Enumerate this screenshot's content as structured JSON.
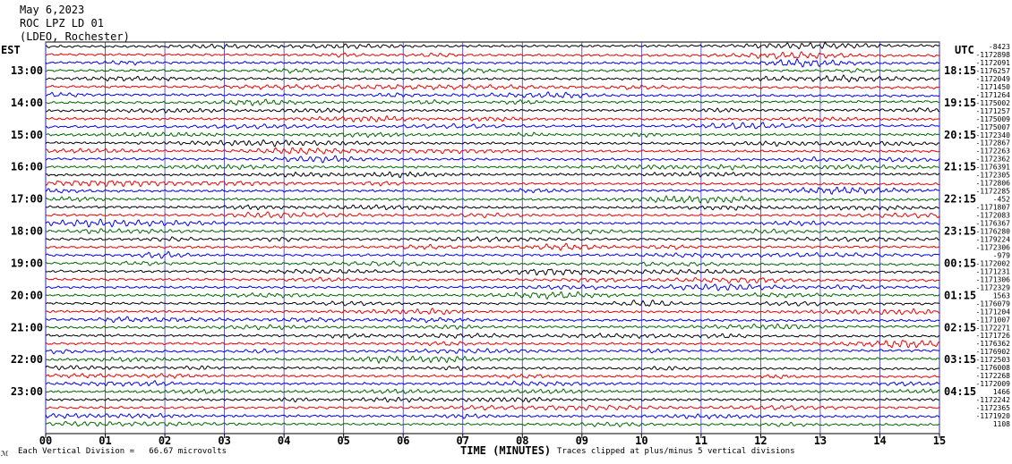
{
  "header": {
    "date": "May 6,2023",
    "station": "ROC LPZ LD 01",
    "network": "(LDEO, Rochester)"
  },
  "left_tz": "EST",
  "right_tz": "UTC",
  "footer": {
    "scale_note": "Each Vertical Division =   66.67 microvolts",
    "clip_note": "Traces clipped at plus/minus 5 vertical divisions",
    "corner_mark": "ℳ"
  },
  "chart_data": {
    "type": "line",
    "xlabel": "TIME (MINUTES)",
    "x_ticks": [
      "00",
      "01",
      "02",
      "03",
      "04",
      "05",
      "06",
      "07",
      "08",
      "09",
      "10",
      "11",
      "12",
      "13",
      "14",
      "15"
    ],
    "xlim": [
      0,
      15
    ],
    "grid": true,
    "trace_count": 48,
    "trace_colors": [
      "#000000",
      "#ee0000",
      "#0000ee",
      "#006600"
    ],
    "left_hour_labels": [
      "13:00",
      "14:00",
      "15:00",
      "16:00",
      "17:00",
      "18:00",
      "19:00",
      "20:00",
      "21:00",
      "22:00",
      "23:00"
    ],
    "right_hour_labels": [
      "18:15",
      "19:15",
      "20:15",
      "21:15",
      "22:15",
      "23:15",
      "00:15",
      "01:15",
      "02:15",
      "03:15",
      "04:15"
    ],
    "trace_offsets": [
      "-8423",
      "-1172898",
      "-1172091",
      "-1176257",
      "-1172049",
      "-1171450",
      "-1171264",
      "-1175002",
      "-1171257",
      "-1175009",
      "-1175007",
      "-1172340",
      "-1172867",
      "-1172263",
      "-1172362",
      "-1176391",
      "-1172305",
      "-1172806",
      "-1172285",
      "-452",
      "-1171807",
      "-1172083",
      "-1176367",
      "-1176280",
      "-1179224",
      "-1172306",
      "-979",
      "-1172002",
      "-1171231",
      "-1171306",
      "-1172329",
      "1563",
      "-1176079",
      "-1171204",
      "-1171007",
      "-1172271",
      "-1171726",
      "-1176362",
      "-1176902",
      "-1172503",
      "-1176008",
      "-1172268",
      "-1172009",
      "1466",
      "-1172242",
      "-1172365",
      "-1171920",
      "1108"
    ]
  }
}
